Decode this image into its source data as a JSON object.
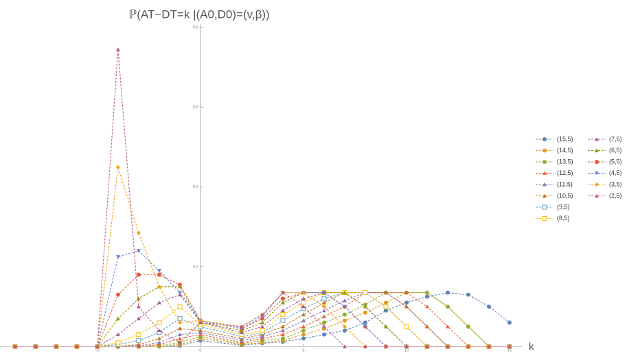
{
  "chart_data": {
    "type": "line",
    "title": "ℙ(AT−DT=k |(A0,D0)=(v,β))",
    "x_label": "k",
    "x": [
      -9,
      -8,
      -7,
      -6,
      -5,
      -4,
      -3,
      -2,
      -1,
      0,
      2,
      3,
      4,
      5,
      6,
      7,
      8,
      9,
      10,
      11,
      12,
      13,
      14,
      15
    ],
    "xlim": [
      -9.73,
      15.6
    ],
    "ylim": [
      0,
      0.8
    ],
    "xticks": [
      -5,
      0,
      5,
      10,
      15
    ],
    "yticks": [
      0.2,
      0.4,
      0.6,
      0.8
    ],
    "series": [
      {
        "name": "(15,5)",
        "color": "#5e81b5",
        "marker": "circle",
        "values": [
          0,
          0,
          0,
          0,
          0,
          0,
          0,
          0,
          0.002,
          0.015,
          0.003,
          0.008,
          0.012,
          0.02,
          0.03,
          0.04,
          0.06,
          0.09,
          0.11,
          0.125,
          0.135,
          0.13,
          0.1,
          0.06
        ]
      },
      {
        "name": "(14,5)",
        "color": "#e19c24",
        "marker": "circle",
        "values": [
          0,
          0,
          0,
          0,
          0,
          0,
          0,
          0,
          0.005,
          0.02,
          0.005,
          0.01,
          0.015,
          0.03,
          0.045,
          0.065,
          0.085,
          0.11,
          0.135,
          0.135,
          0.1,
          0.05,
          0,
          0
        ]
      },
      {
        "name": "(13,5)",
        "color": "#8fb032",
        "marker": "circle",
        "values": [
          0,
          0,
          0,
          0,
          0,
          0,
          0,
          0.002,
          0.01,
          0.025,
          0.007,
          0.015,
          0.02,
          0.04,
          0.06,
          0.08,
          0.105,
          0.135,
          0.135,
          0.135,
          0.1,
          0.05,
          0,
          0
        ]
      },
      {
        "name": "(12,5)",
        "color": "#eb6235",
        "marker": "triangle",
        "values": [
          0,
          0,
          0,
          0,
          0,
          0,
          0,
          0.005,
          0.02,
          0.03,
          0.01,
          0.02,
          0.03,
          0.05,
          0.075,
          0.1,
          0.135,
          0.135,
          0.135,
          0.1,
          0.05,
          0,
          0,
          0
        ]
      },
      {
        "name": "(11,5)",
        "color": "#8778b3",
        "marker": "triangle",
        "values": [
          0,
          0,
          0,
          0,
          0,
          0,
          0.002,
          0.01,
          0.03,
          0.035,
          0.015,
          0.025,
          0.04,
          0.065,
          0.09,
          0.115,
          0.135,
          0.135,
          0.1,
          0.05,
          0,
          0,
          0,
          0
        ]
      },
      {
        "name": "(10,5)",
        "color": "#c56e1a",
        "marker": "triangle",
        "values": [
          0,
          0,
          0,
          0,
          0,
          0,
          0.005,
          0.02,
          0.045,
          0.04,
          0.02,
          0.03,
          0.05,
          0.08,
          0.11,
          0.135,
          0.135,
          0.135,
          0.1,
          0.05,
          0,
          0,
          0,
          0
        ]
      },
      {
        "name": "(9,5)",
        "color": "#5d9ec7",
        "marker": "square",
        "values": [
          0,
          0,
          0,
          0,
          0,
          0.005,
          0.015,
          0.035,
          0.07,
          0.05,
          0.025,
          0.035,
          0.065,
          0.095,
          0.12,
          0.135,
          0.135,
          0.1,
          0.05,
          0,
          0,
          0,
          0,
          0
        ]
      },
      {
        "name": "(8,5)",
        "color": "#ffbf00",
        "marker": "square",
        "values": [
          0,
          0,
          0,
          0,
          0,
          0.01,
          0.03,
          0.06,
          0.1,
          0.055,
          0.03,
          0.04,
          0.08,
          0.11,
          0.135,
          0.135,
          0.135,
          0.1,
          0.05,
          0,
          0,
          0,
          0,
          0
        ]
      },
      {
        "name": "(7,5)",
        "color": "#a5609d",
        "marker": "triangle",
        "values": [
          0,
          0,
          0,
          0,
          0,
          0.03,
          0.07,
          0.11,
          0.13,
          0.06,
          0.035,
          0.05,
          0.09,
          0.12,
          0.135,
          0.135,
          0.1,
          0.05,
          0,
          0,
          0,
          0,
          0,
          0
        ]
      },
      {
        "name": "(6,5)",
        "color": "#929600",
        "marker": "triangle",
        "values": [
          0,
          0,
          0,
          0,
          0,
          0.07,
          0.12,
          0.15,
          0.15,
          0.06,
          0.04,
          0.06,
          0.11,
          0.135,
          0.135,
          0.135,
          0.1,
          0.05,
          0,
          0,
          0,
          0,
          0,
          0
        ]
      },
      {
        "name": "(5,5)",
        "color": "#e95536",
        "marker": "circle",
        "values": [
          0,
          0,
          0,
          0,
          0,
          0.13,
          0.18,
          0.18,
          0.155,
          0.065,
          0.045,
          0.07,
          0.12,
          0.135,
          0.135,
          0.1,
          0.05,
          0,
          0,
          0,
          0,
          0,
          0,
          0
        ]
      },
      {
        "name": "(4,5)",
        "color": "#6685d9",
        "marker": "inverted-triangle",
        "values": [
          0,
          0,
          0,
          0,
          0,
          0.225,
          0.24,
          0.19,
          0.135,
          0.065,
          0.045,
          0.075,
          0.135,
          0.135,
          0.135,
          0.1,
          0.05,
          0,
          0,
          0,
          0,
          0,
          0,
          0
        ]
      },
      {
        "name": "(3,5)",
        "color": "#f89f13",
        "marker": "diamond",
        "values": [
          0,
          0,
          0,
          0,
          0,
          0.45,
          0.285,
          0.15,
          0.06,
          0.065,
          0.05,
          0.08,
          0.135,
          0.135,
          0.1,
          0.05,
          0,
          0,
          0,
          0,
          0,
          0,
          0,
          0
        ]
      },
      {
        "name": "(2,5)",
        "color": "#bc5b80",
        "marker": "triangle",
        "values": [
          0,
          0,
          0,
          0,
          0,
          0.745,
          0.1,
          0.04,
          0.01,
          0.06,
          0.05,
          0.08,
          0.135,
          0.1,
          0.05,
          0,
          0,
          0,
          0,
          0,
          0,
          0,
          0,
          0
        ]
      }
    ]
  }
}
